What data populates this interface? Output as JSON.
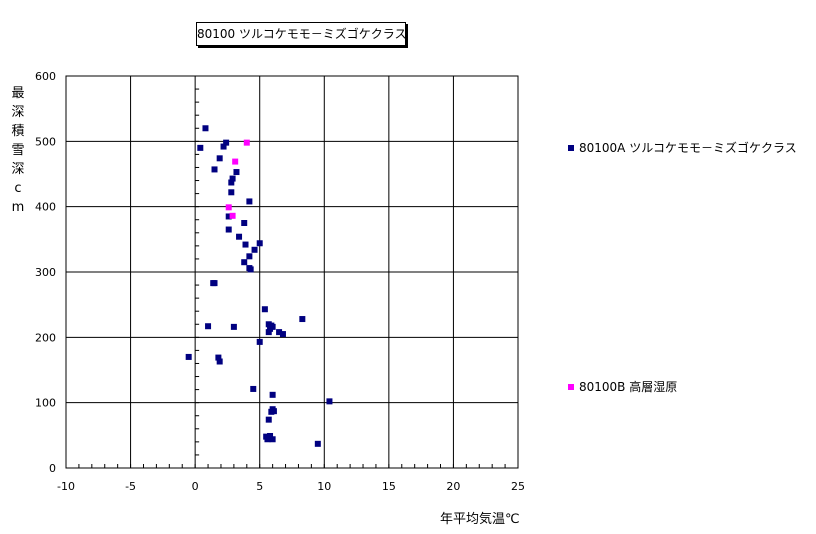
{
  "chart_data": {
    "type": "scatter",
    "title": "80100 ツルコケモモ－ミズゴケクラス",
    "xlabel": "年平均気温℃",
    "ylabel": "最深積雪深cm",
    "xlim": [
      -10,
      25
    ],
    "ylim": [
      0,
      600
    ],
    "xticks": [
      "-10",
      "-5",
      "0",
      "5",
      "10",
      "15",
      "20",
      "25"
    ],
    "yticks": [
      "0",
      "100",
      "200",
      "300",
      "400",
      "500",
      "600"
    ],
    "grid": true,
    "legend_position": "right",
    "series": [
      {
        "name": "80100A ツルコケモモ－ミズゴケクラス",
        "color": "#000080",
        "points": [
          [
            0.8,
            520
          ],
          [
            0.4,
            490
          ],
          [
            2.4,
            498
          ],
          [
            2.2,
            492
          ],
          [
            1.9,
            474
          ],
          [
            1.5,
            457
          ],
          [
            3.2,
            453
          ],
          [
            2.9,
            443
          ],
          [
            2.8,
            437
          ],
          [
            2.8,
            422
          ],
          [
            4.2,
            408
          ],
          [
            2.6,
            385
          ],
          [
            3.8,
            375
          ],
          [
            2.6,
            365
          ],
          [
            3.4,
            354
          ],
          [
            5.0,
            344
          ],
          [
            3.9,
            342
          ],
          [
            4.6,
            334
          ],
          [
            4.2,
            324
          ],
          [
            3.8,
            315
          ],
          [
            4.2,
            306
          ],
          [
            4.3,
            304
          ],
          [
            1.4,
            283
          ],
          [
            1.5,
            283
          ],
          [
            5.4,
            243
          ],
          [
            8.3,
            228
          ],
          [
            1.0,
            217
          ],
          [
            3.0,
            216
          ],
          [
            5.7,
            220
          ],
          [
            5.9,
            218
          ],
          [
            5.8,
            213
          ],
          [
            6.0,
            216
          ],
          [
            5.7,
            208
          ],
          [
            6.5,
            208
          ],
          [
            6.8,
            205
          ],
          [
            5.0,
            193
          ],
          [
            -0.5,
            170
          ],
          [
            1.8,
            169
          ],
          [
            1.9,
            163
          ],
          [
            4.5,
            121
          ],
          [
            6.0,
            112
          ],
          [
            10.4,
            102
          ],
          [
            6.0,
            90
          ],
          [
            5.9,
            86
          ],
          [
            6.1,
            87
          ],
          [
            5.7,
            74
          ],
          [
            5.5,
            48
          ],
          [
            5.8,
            49
          ],
          [
            5.6,
            44
          ],
          [
            6.0,
            44
          ],
          [
            9.5,
            37
          ]
        ]
      },
      {
        "name": "80100B 高層湿原",
        "color": "#ff00ff",
        "points": [
          [
            4.0,
            498
          ],
          [
            3.1,
            469
          ],
          [
            2.6,
            399
          ],
          [
            2.9,
            386
          ]
        ]
      }
    ]
  }
}
